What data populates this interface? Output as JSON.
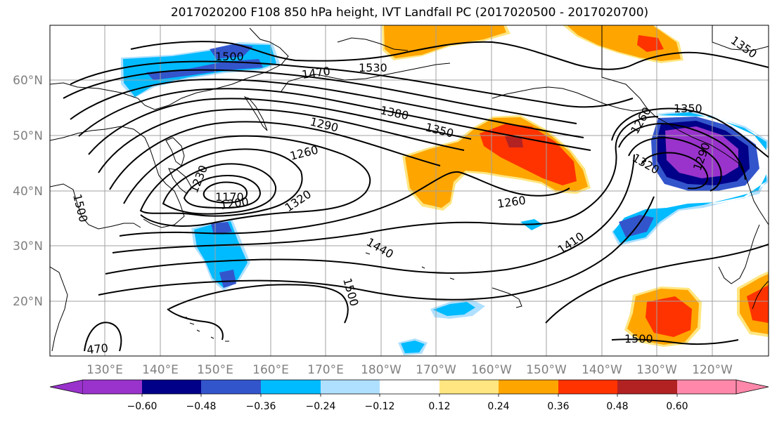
{
  "title": "2017020200 F108 850 hPa height, IVT Landfall PC (2017020500 - 2017020700)",
  "map": {
    "lat_ticks": [
      "60°N",
      "50°N",
      "40°N",
      "30°N",
      "20°N"
    ],
    "lon_ticks": [
      "130°E",
      "140°E",
      "150°E",
      "160°E",
      "170°E",
      "180°W",
      "170°W",
      "160°W",
      "150°W",
      "140°W",
      "130°W",
      "120°W"
    ],
    "contour_labels": [
      "1500",
      "1530",
      "1470",
      "1350",
      "1380",
      "1350",
      "1290",
      "1260",
      "1230",
      "1170",
      "1200",
      "1320",
      "1260",
      "1440",
      "1410",
      "1500",
      "1500",
      "1500",
      "470",
      "1350",
      "1260",
      "1320",
      "1290"
    ],
    "colors": {
      "neg060": "#9933cc",
      "neg048": "#000088",
      "neg036": "#3355cc",
      "neg024": "#00bbff",
      "neg012": "#b0e0ff",
      "pos012": "#ffe680",
      "pos024": "#ffa500",
      "pos036": "#ff3300",
      "pos048": "#b22222",
      "pos060": "#ff88aa"
    }
  },
  "colorbar": {
    "ticks": [
      "−0.60",
      "−0.48",
      "−0.36",
      "−0.24",
      "−0.12",
      "0.12",
      "0.24",
      "0.36",
      "0.48",
      "0.60"
    ],
    "bins": [
      "#9933cc",
      "#000088",
      "#3355cc",
      "#00bbff",
      "#b0e0ff",
      "#ffffff",
      "#ffe680",
      "#ffa500",
      "#ff3300",
      "#b22222",
      "#ff88aa"
    ]
  }
}
